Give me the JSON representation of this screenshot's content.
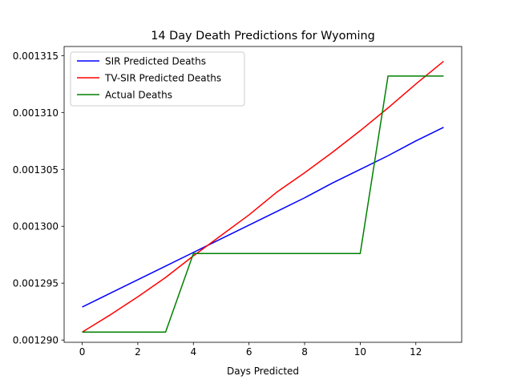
{
  "chart_data": {
    "type": "line",
    "title": "14 Day Death Predictions for Wyoming",
    "xlabel": "Days Predicted",
    "ylabel": "",
    "xlim": [
      -0.65,
      13.65
    ],
    "ylim": [
      0.0012898,
      0.0013158
    ],
    "xticks": [
      0,
      2,
      4,
      6,
      8,
      10,
      12
    ],
    "xtick_labels": [
      "0",
      "2",
      "4",
      "6",
      "8",
      "10",
      "12"
    ],
    "yticks": [
      0.00129,
      0.001295,
      0.0013,
      0.001305,
      0.00131,
      0.001315
    ],
    "ytick_labels": [
      "0.001290",
      "0.001295",
      "0.001300",
      "0.001305",
      "0.001310",
      "0.001315"
    ],
    "grid": false,
    "legend_position": "upper-left",
    "x": [
      0,
      1,
      2,
      3,
      4,
      5,
      6,
      7,
      8,
      9,
      10,
      11,
      12,
      13
    ],
    "series": [
      {
        "name": "SIR Predicted Deaths",
        "color": "#0000ff",
        "values": [
          0.0012929,
          0.0012941,
          0.0012953,
          0.0012965,
          0.0012977,
          0.0012989,
          0.0013001,
          0.0013013,
          0.0013025,
          0.0013038,
          0.001305,
          0.0013062,
          0.0013075,
          0.0013087
        ]
      },
      {
        "name": "TV-SIR Predicted Deaths",
        "color": "#ff0000",
        "values": [
          0.0012907,
          0.0012922,
          0.0012938,
          0.0012955,
          0.0012974,
          0.0012992,
          0.001301,
          0.001303,
          0.0013047,
          0.0013065,
          0.0013084,
          0.0013104,
          0.0013125,
          0.0013145
        ]
      },
      {
        "name": "Actual Deaths",
        "color": "#008000",
        "values": [
          0.0012907,
          0.0012907,
          0.0012907,
          0.0012907,
          0.0012976,
          0.0012976,
          0.0012976,
          0.0012976,
          0.0012976,
          0.0012976,
          0.0012976,
          0.0013132,
          0.0013132,
          0.0013132
        ]
      }
    ]
  }
}
